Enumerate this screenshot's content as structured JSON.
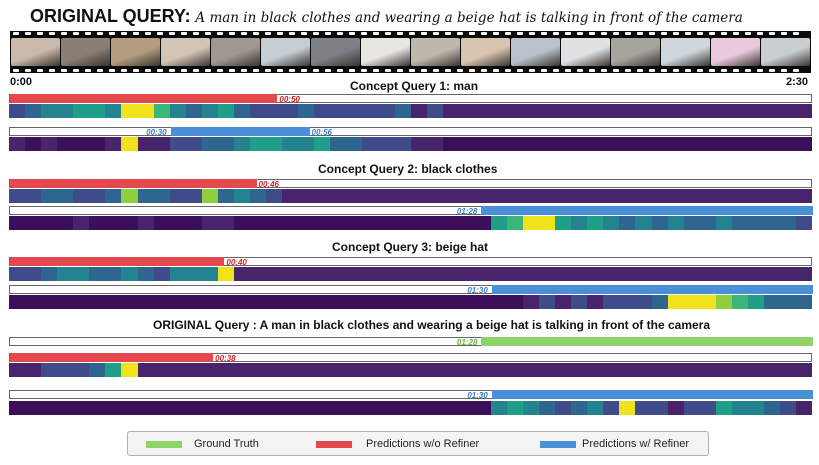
{
  "header": {
    "title_bold": "ORIGINAL QUERY:",
    "title_query": "A man in black clothes and wearing a beige hat is talking in front of the camera"
  },
  "timeline": {
    "start": "0:00",
    "end": "2:30"
  },
  "colors": {
    "ground_truth": "#8fd468",
    "pred_no_refiner": "#e5484d",
    "pred_refiner": "#4a90d9"
  },
  "sections": [
    {
      "title": "Concept Query 1: man",
      "bars": [
        {
          "type": "pred_no_refiner",
          "start_pct": 0,
          "end_pct": 33.3,
          "label": "00:50",
          "heat": [
            3,
            4,
            5,
            5,
            6,
            6,
            5,
            9,
            9,
            7,
            5,
            4,
            5,
            6,
            4,
            3,
            3,
            3,
            4,
            3,
            3,
            3,
            3,
            3,
            4,
            2,
            3,
            2,
            2,
            2,
            2,
            2,
            2,
            2,
            2,
            2,
            2,
            2,
            2,
            2,
            2,
            2,
            2,
            2,
            2,
            2,
            2,
            2,
            2,
            2
          ]
        },
        {
          "type": "pred_refiner",
          "start_pct": 20,
          "end_pct": 37.3,
          "label_start": "00:30",
          "label_end": "00:56",
          "heat": [
            2,
            1,
            2,
            1,
            1,
            1,
            2,
            9,
            2,
            2,
            3,
            3,
            4,
            4,
            5,
            6,
            6,
            5,
            5,
            6,
            4,
            4,
            3,
            3,
            3,
            2,
            2,
            1,
            1,
            1,
            1,
            1,
            1,
            1,
            1,
            1,
            1,
            1,
            1,
            1,
            1,
            1,
            1,
            1,
            1,
            1,
            1,
            1,
            1,
            1
          ]
        }
      ]
    },
    {
      "title": "Concept Query 2: black clothes",
      "bars": [
        {
          "type": "pred_no_refiner",
          "start_pct": 0,
          "end_pct": 30.7,
          "label": "00:46",
          "heat": [
            3,
            3,
            4,
            4,
            3,
            3,
            4,
            8,
            4,
            4,
            3,
            3,
            8,
            4,
            5,
            4,
            3,
            2,
            2,
            2,
            2,
            2,
            2,
            2,
            2,
            2,
            2,
            2,
            2,
            2,
            2,
            2,
            2,
            2,
            2,
            2,
            2,
            2,
            2,
            2,
            2,
            2,
            2,
            2,
            2,
            2,
            2,
            2,
            2,
            2
          ]
        },
        {
          "type": "pred_refiner",
          "start_pct": 58.7,
          "end_pct": 100,
          "label": "01:28",
          "heat": [
            1,
            1,
            1,
            1,
            2,
            1,
            1,
            1,
            2,
            1,
            1,
            1,
            2,
            2,
            1,
            1,
            1,
            1,
            1,
            1,
            1,
            1,
            1,
            1,
            1,
            1,
            1,
            1,
            1,
            1,
            6,
            7,
            9,
            9,
            6,
            5,
            6,
            5,
            4,
            5,
            4,
            5,
            4,
            4,
            5,
            4,
            4,
            4,
            4,
            3
          ]
        }
      ]
    },
    {
      "title": "Concept Query 3: beige hat",
      "bars": [
        {
          "type": "pred_no_refiner",
          "start_pct": 0,
          "end_pct": 26.7,
          "label": "00:40",
          "heat": [
            3,
            3,
            4,
            5,
            5,
            4,
            4,
            5,
            4,
            3,
            5,
            5,
            5,
            9,
            2,
            2,
            2,
            2,
            2,
            2,
            2,
            2,
            2,
            2,
            2,
            2,
            2,
            2,
            2,
            2,
            2,
            2,
            2,
            2,
            2,
            2,
            2,
            2,
            2,
            2,
            2,
            2,
            2,
            2,
            2,
            2,
            2,
            2,
            2,
            2
          ]
        },
        {
          "type": "pred_refiner",
          "start_pct": 60,
          "end_pct": 100,
          "label": "01:30",
          "heat": [
            1,
            1,
            1,
            1,
            1,
            1,
            1,
            1,
            1,
            1,
            1,
            1,
            1,
            1,
            1,
            1,
            1,
            1,
            1,
            1,
            1,
            1,
            1,
            1,
            1,
            1,
            1,
            1,
            1,
            1,
            1,
            1,
            2,
            3,
            2,
            3,
            2,
            3,
            3,
            3,
            4,
            9,
            9,
            9,
            8,
            7,
            6,
            4,
            4,
            4
          ]
        }
      ]
    },
    {
      "title": "ORIGINAL Query : A man in black clothes and wearing a beige hat is talking in front of the camera",
      "bars": [
        {
          "type": "ground_truth",
          "start_pct": 58.7,
          "end_pct": 100,
          "label": "01:28",
          "heat": []
        },
        {
          "type": "pred_no_refiner",
          "start_pct": 0,
          "end_pct": 25.3,
          "label": "00:38",
          "heat": [
            2,
            2,
            3,
            3,
            3,
            4,
            6,
            9,
            2,
            2,
            2,
            2,
            2,
            2,
            2,
            2,
            2,
            2,
            2,
            2,
            2,
            2,
            2,
            2,
            2,
            2,
            2,
            2,
            2,
            2,
            2,
            2,
            2,
            2,
            2,
            2,
            2,
            2,
            2,
            2,
            2,
            2,
            2,
            2,
            2,
            2,
            2,
            2,
            2,
            2
          ]
        },
        {
          "type": "pred_refiner",
          "start_pct": 60,
          "end_pct": 100,
          "label": "01:30",
          "heat": [
            1,
            1,
            1,
            1,
            1,
            1,
            1,
            1,
            1,
            1,
            1,
            1,
            1,
            1,
            1,
            1,
            1,
            1,
            1,
            1,
            1,
            1,
            1,
            1,
            1,
            1,
            1,
            1,
            1,
            1,
            5,
            6,
            5,
            4,
            3,
            4,
            5,
            3,
            9,
            3,
            3,
            2,
            3,
            3,
            6,
            5,
            5,
            4,
            3,
            2
          ]
        }
      ]
    }
  ],
  "legend": [
    {
      "label": "Ground Truth",
      "color": "#8fd468"
    },
    {
      "label": "Predictions w/o Refiner",
      "color": "#e5484d"
    },
    {
      "label": "Predictions w/ Refiner",
      "color": "#4a90d9"
    }
  ],
  "frame_colors": [
    "#c9b9a8",
    "#8a7f74",
    "#b49c80",
    "#d2c5b5",
    "#9e9890",
    "#c5ccd2",
    "#7d8084",
    "#e8e6e1",
    "#bfb8ad",
    "#d9c4b0",
    "#b9c2ca",
    "#dfe2e4",
    "#a7a39d",
    "#cfd6dc",
    "#e9c9de",
    "#c9ced3"
  ]
}
